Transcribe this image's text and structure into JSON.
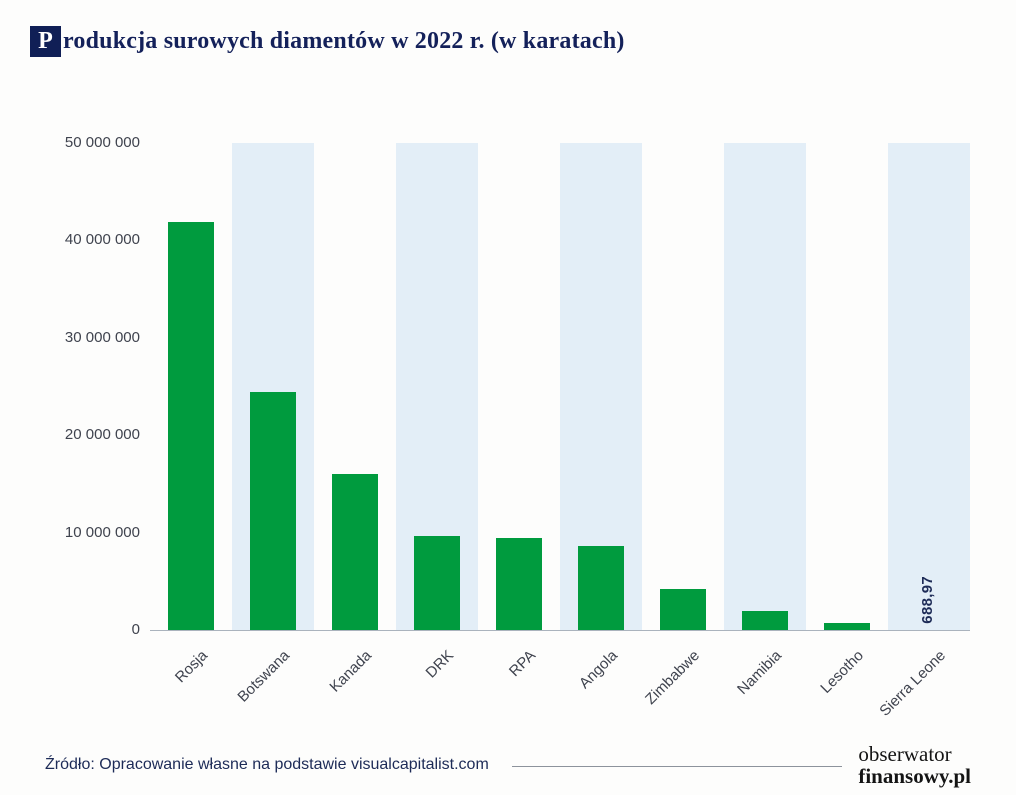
{
  "title": {
    "drop_cap": "P",
    "rest": "rodukcja surowych diamentów w 2022 r. (w karatach)",
    "full": "Produkcja surowych diamentów w 2022 r. (w karatach)"
  },
  "chart_data": {
    "type": "bar",
    "title": "Produkcja surowych diamentów w 2022 r. (w karatach)",
    "categories": [
      "Rosja",
      "Botswana",
      "Kanada",
      "DRK",
      "RPA",
      "Angola",
      "Zimbabwe",
      "Namibia",
      "Lesotho",
      "Sierra Leone"
    ],
    "values": [
      41900000,
      24400000,
      16000000,
      9700000,
      9400000,
      8600000,
      4200000,
      1900000,
      700000,
      688.97
    ],
    "ylim": [
      0,
      50000000
    ],
    "yticks": [
      0,
      10000000,
      20000000,
      30000000,
      40000000,
      50000000
    ],
    "ytick_labels": [
      "0",
      "10 000 000",
      "20 000 000",
      "30 000 000",
      "40 000 000",
      "50 000 000"
    ],
    "annotation": {
      "index": 9,
      "text": "688,97"
    },
    "grid": false,
    "legend": "none",
    "xlabel": "",
    "ylabel": "",
    "colors": {
      "bar": "#009b3e",
      "stripe": "#e3eef7",
      "axis_line": "#aab3bd",
      "tick_text": "#3f434e",
      "annotation_text": "#1d2b57"
    },
    "stripe_columns": [
      1,
      3,
      5,
      7,
      9
    ]
  },
  "footer": {
    "source": "Źródło: Opracowanie własne na podstawie visualcapitalist.com",
    "brand_line1": "obserwator",
    "brand_line2": "finansowy.pl"
  }
}
